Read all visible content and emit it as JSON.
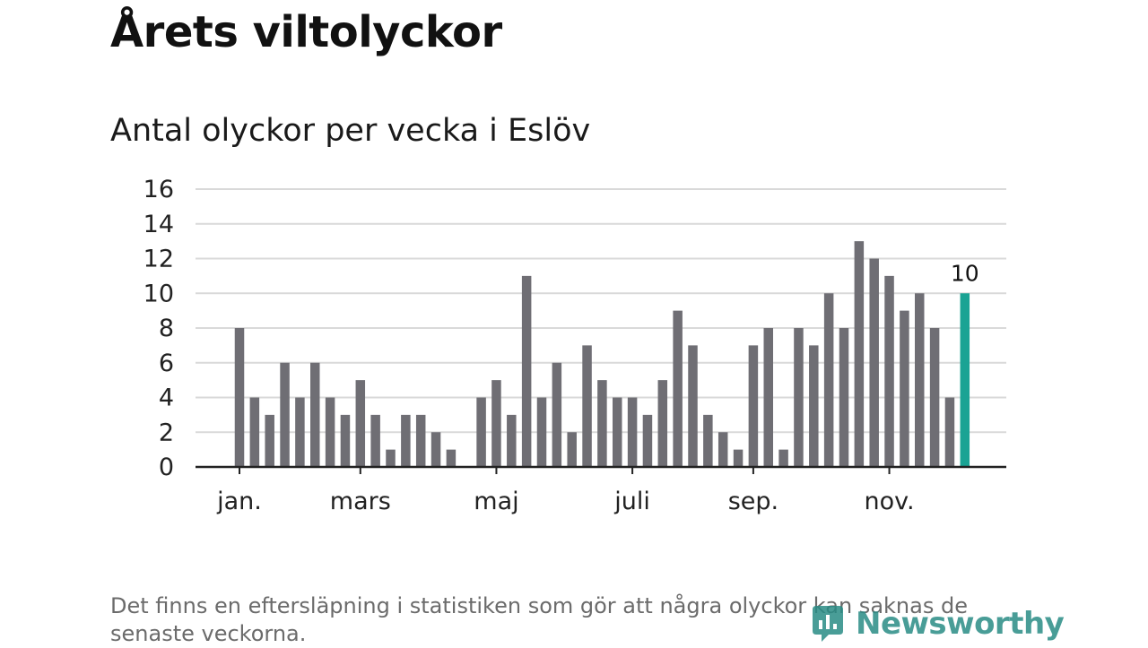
{
  "header": {
    "title": "Årets viltolyckor",
    "subtitle": "Antal olyckor per vecka i Eslöv"
  },
  "footer": {
    "note": "Det finns en eftersläpning i statistiken som gör att några olyckor kan saknas de senaste veckorna.",
    "logo_text": "Newsworthy"
  },
  "colors": {
    "bar": "#6f6e74",
    "highlight": "#1aa394",
    "grid": "#d9d9d9",
    "axis": "#222222"
  },
  "chart_data": {
    "type": "bar",
    "title": "Antal olyckor per vecka i Eslöv",
    "xlabel": "",
    "ylabel": "",
    "ylim": [
      0,
      16
    ],
    "y_ticks": [
      "0",
      "2",
      "4",
      "6",
      "8",
      "10",
      "12",
      "14",
      "16"
    ],
    "x_tick_labels": [
      {
        "label": "jan.",
        "week": 1
      },
      {
        "label": "mars",
        "week": 9
      },
      {
        "label": "maj",
        "week": 18
      },
      {
        "label": "juli",
        "week": 27
      },
      {
        "label": "sep.",
        "week": 35
      },
      {
        "label": "nov.",
        "week": 44
      }
    ],
    "weeks": [
      1,
      2,
      3,
      4,
      5,
      6,
      7,
      8,
      9,
      10,
      11,
      12,
      13,
      14,
      15,
      16,
      17,
      18,
      19,
      20,
      21,
      22,
      23,
      24,
      25,
      26,
      27,
      28,
      29,
      30,
      31,
      32,
      33,
      34,
      35,
      36,
      37,
      38,
      39,
      40,
      41,
      42,
      43,
      44,
      45,
      46,
      47,
      48
    ],
    "values": [
      8,
      4,
      3,
      6,
      4,
      6,
      4,
      3,
      5,
      3,
      1,
      3,
      3,
      2,
      1,
      0,
      4,
      5,
      3,
      11,
      4,
      6,
      2,
      7,
      5,
      4,
      4,
      3,
      5,
      9,
      7,
      3,
      2,
      1,
      7,
      8,
      1,
      8,
      7,
      10,
      8,
      13,
      12,
      11,
      9,
      10,
      8,
      4
    ],
    "highlight": {
      "week": 49,
      "value": 10,
      "label": "10"
    },
    "grid": true,
    "legend": "none"
  }
}
